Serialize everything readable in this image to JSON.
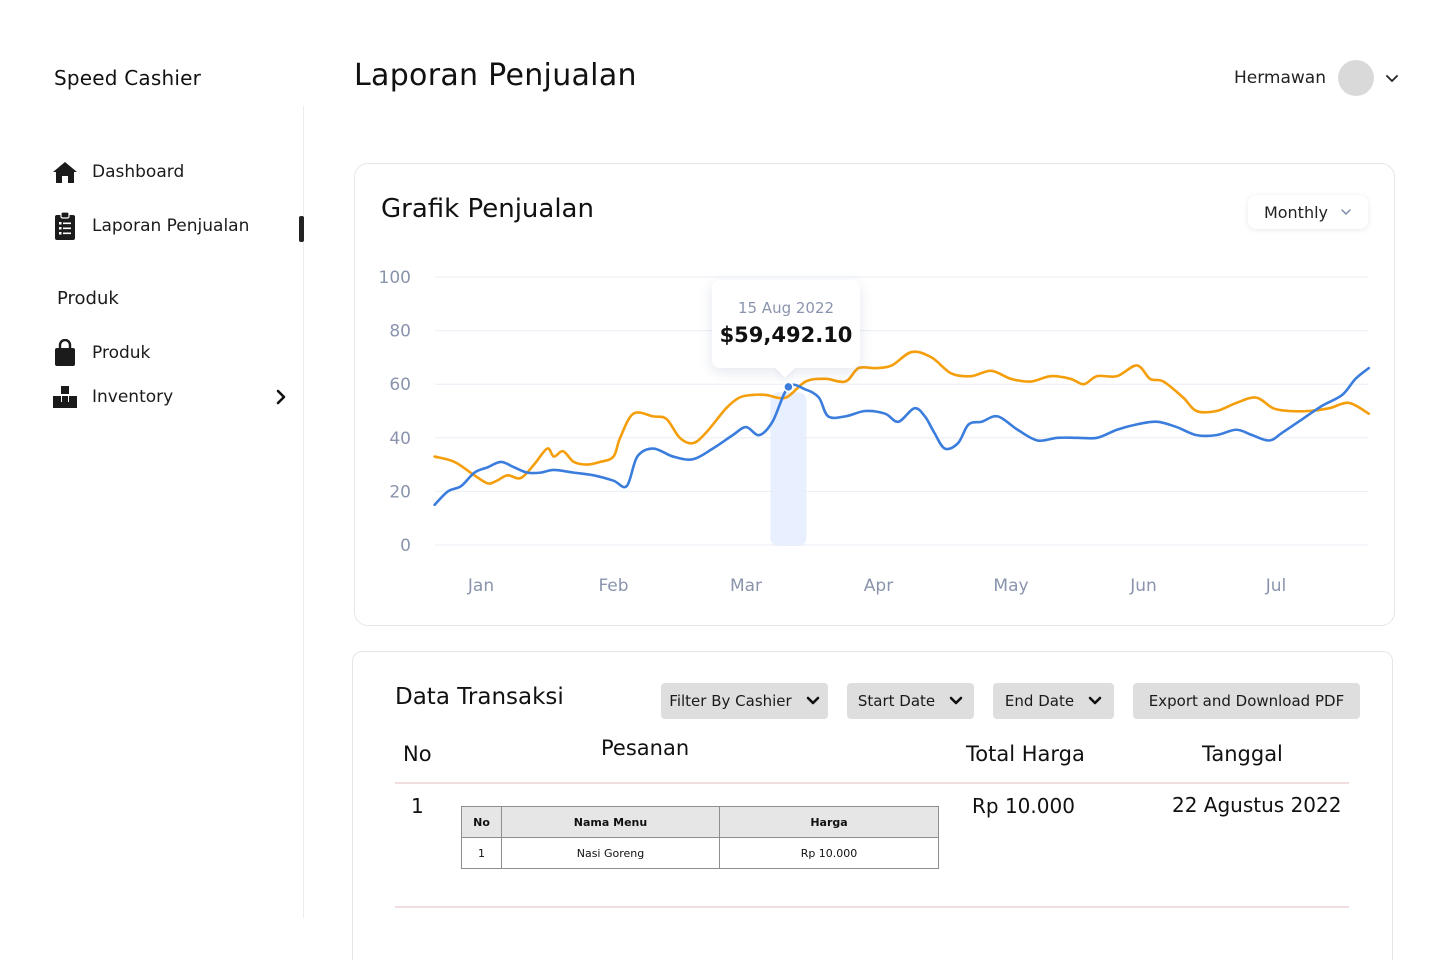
{
  "app": {
    "brand": "Speed Cashier"
  },
  "sidebar": {
    "items": [
      {
        "label": "Dashboard",
        "icon": "home-icon"
      },
      {
        "label": "Laporan Penjualan",
        "icon": "clipboard-list-icon",
        "active": true
      }
    ],
    "section_title": "Produk",
    "product_items": [
      {
        "label": "Produk",
        "icon": "shopping-bag-icon"
      },
      {
        "label": "Inventory",
        "icon": "boxes-icon",
        "has_submenu": true
      }
    ]
  },
  "header": {
    "title": "Laporan Penjualan",
    "user_name": "Hermawan"
  },
  "chart_card": {
    "title": "Grafik Penjualan",
    "period_select": "Monthly",
    "tooltip": {
      "date": "15 Aug 2022",
      "value": "$59,492.10"
    }
  },
  "chart_data": {
    "type": "line",
    "categories": [
      "Jan",
      "Feb",
      "Mar",
      "Apr",
      "May",
      "Jun",
      "Jul"
    ],
    "yticks": [
      0,
      20,
      40,
      60,
      80,
      100
    ],
    "ylim": [
      0,
      100
    ],
    "grid": true,
    "highlight_x": 2.32,
    "series": [
      {
        "color": "#f59e0b",
        "points": [
          [
            -0.35,
            33
          ],
          [
            -0.2,
            31
          ],
          [
            -0.05,
            26
          ],
          [
            0.05,
            23
          ],
          [
            0.12,
            24
          ],
          [
            0.2,
            26
          ],
          [
            0.3,
            25
          ],
          [
            0.4,
            30
          ],
          [
            0.5,
            36
          ],
          [
            0.55,
            33
          ],
          [
            0.62,
            35
          ],
          [
            0.7,
            31
          ],
          [
            0.8,
            30
          ],
          [
            0.9,
            31
          ],
          [
            1.0,
            33
          ],
          [
            1.05,
            40
          ],
          [
            1.15,
            49
          ],
          [
            1.3,
            48
          ],
          [
            1.4,
            47
          ],
          [
            1.5,
            40
          ],
          [
            1.6,
            38
          ],
          [
            1.7,
            42
          ],
          [
            1.85,
            51
          ],
          [
            1.95,
            55
          ],
          [
            2.05,
            56
          ],
          [
            2.15,
            56
          ],
          [
            2.3,
            55
          ],
          [
            2.45,
            61
          ],
          [
            2.6,
            62
          ],
          [
            2.75,
            61
          ],
          [
            2.85,
            66
          ],
          [
            2.98,
            66
          ],
          [
            3.1,
            67
          ],
          [
            3.25,
            72
          ],
          [
            3.4,
            70
          ],
          [
            3.55,
            64
          ],
          [
            3.7,
            63
          ],
          [
            3.85,
            65
          ],
          [
            4.0,
            62
          ],
          [
            4.15,
            61
          ],
          [
            4.3,
            63
          ],
          [
            4.45,
            62
          ],
          [
            4.55,
            60
          ],
          [
            4.65,
            63
          ],
          [
            4.8,
            63
          ],
          [
            4.95,
            67
          ],
          [
            5.05,
            62
          ],
          [
            5.15,
            61
          ],
          [
            5.3,
            55
          ],
          [
            5.4,
            50
          ],
          [
            5.55,
            50
          ],
          [
            5.7,
            53
          ],
          [
            5.85,
            55
          ],
          [
            5.98,
            51
          ],
          [
            6.1,
            50
          ],
          [
            6.25,
            50
          ],
          [
            6.4,
            51
          ],
          [
            6.55,
            53
          ],
          [
            6.7,
            49
          ]
        ]
      },
      {
        "color": "#3b7ddd",
        "points": [
          [
            -0.35,
            15
          ],
          [
            -0.25,
            20
          ],
          [
            -0.15,
            22
          ],
          [
            -0.05,
            27
          ],
          [
            0.05,
            29
          ],
          [
            0.15,
            31
          ],
          [
            0.25,
            29
          ],
          [
            0.35,
            27
          ],
          [
            0.45,
            27
          ],
          [
            0.55,
            28
          ],
          [
            0.7,
            27
          ],
          [
            0.85,
            26
          ],
          [
            1.0,
            24
          ],
          [
            1.1,
            22
          ],
          [
            1.18,
            33
          ],
          [
            1.3,
            36
          ],
          [
            1.45,
            33
          ],
          [
            1.6,
            32
          ],
          [
            1.75,
            36
          ],
          [
            1.9,
            41
          ],
          [
            2.0,
            44
          ],
          [
            2.1,
            41
          ],
          [
            2.2,
            46
          ],
          [
            2.32,
            59
          ],
          [
            2.45,
            58
          ],
          [
            2.55,
            55
          ],
          [
            2.62,
            48
          ],
          [
            2.75,
            48
          ],
          [
            2.9,
            50
          ],
          [
            3.05,
            49
          ],
          [
            3.15,
            46
          ],
          [
            3.27,
            51
          ],
          [
            3.35,
            48
          ],
          [
            3.42,
            42
          ],
          [
            3.5,
            36
          ],
          [
            3.6,
            38
          ],
          [
            3.68,
            45
          ],
          [
            3.78,
            46
          ],
          [
            3.9,
            48
          ],
          [
            4.05,
            43
          ],
          [
            4.2,
            39
          ],
          [
            4.35,
            40
          ],
          [
            4.5,
            40
          ],
          [
            4.65,
            40
          ],
          [
            4.8,
            43
          ],
          [
            4.95,
            45
          ],
          [
            5.1,
            46
          ],
          [
            5.25,
            44
          ],
          [
            5.4,
            41
          ],
          [
            5.55,
            41
          ],
          [
            5.7,
            43
          ],
          [
            5.82,
            41
          ],
          [
            5.95,
            39
          ],
          [
            6.05,
            42
          ],
          [
            6.2,
            47
          ],
          [
            6.35,
            52
          ],
          [
            6.5,
            56
          ],
          [
            6.6,
            62
          ],
          [
            6.7,
            66
          ]
        ]
      }
    ]
  },
  "transactions": {
    "title": "Data Transaksi",
    "buttons": {
      "filter_cashier": "Filter By Cashier",
      "start_date": "Start Date",
      "end_date": "End Date",
      "export": "Export and Download PDF"
    },
    "columns": {
      "no": "No",
      "pesanan": "Pesanan",
      "total": "Total Harga",
      "tanggal": "Tanggal"
    },
    "rows": [
      {
        "no": "1",
        "total": "Rp 10.000",
        "tanggal": "22 Agustus 2022",
        "order": {
          "headers": {
            "no": "No",
            "menu": "Nama Menu",
            "price": "Harga"
          },
          "items": [
            {
              "no": "1",
              "menu": "Nasi Goreng",
              "price": "Rp 10.000"
            }
          ]
        }
      }
    ]
  }
}
